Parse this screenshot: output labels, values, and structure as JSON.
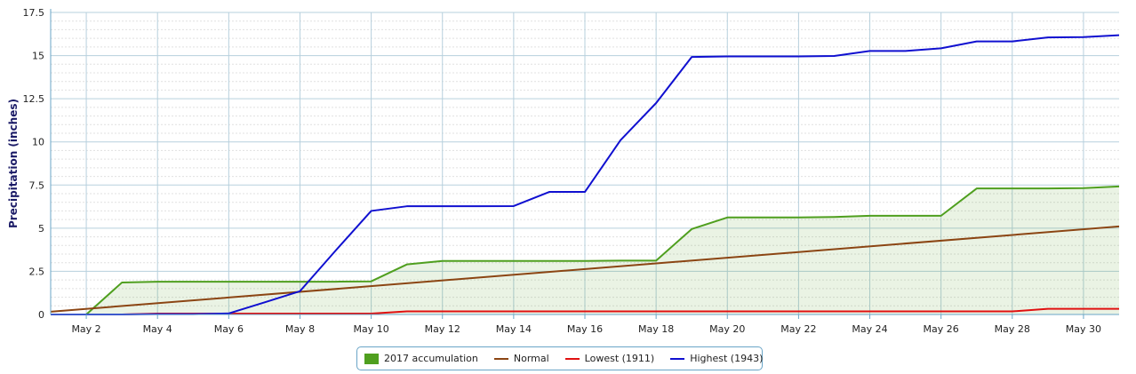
{
  "chart_data": {
    "type": "line",
    "title": "",
    "xlabel": "",
    "ylabel": "Precipitation (inches)",
    "ylim": [
      0,
      17.5
    ],
    "y_ticks": [
      "0",
      "2.5",
      "5",
      "7.5",
      "10",
      "12.5",
      "15",
      "17.5"
    ],
    "x_tick_labels": [
      "May 2",
      "May 4",
      "May 6",
      "May 8",
      "May 10",
      "May 12",
      "May 14",
      "May 16",
      "May 18",
      "May 20",
      "May 22",
      "May 24",
      "May 26",
      "May 28",
      "May 30"
    ],
    "x_tick_days": [
      2,
      4,
      6,
      8,
      10,
      12,
      14,
      16,
      18,
      20,
      22,
      24,
      26,
      28,
      30
    ],
    "xlim_days": [
      1,
      31
    ],
    "grid": true,
    "legend_placement": "bottom-center",
    "series": [
      {
        "name": "2017 accumulation",
        "color": "#4f9f1f",
        "style": "area",
        "x": [
          1,
          2,
          3,
          4,
          5,
          6,
          7,
          8,
          9,
          10,
          11,
          12,
          13,
          14,
          15,
          16,
          17,
          18,
          19,
          20,
          21,
          22,
          23,
          24,
          25,
          26,
          27,
          28,
          29,
          30,
          31
        ],
        "values": [
          0,
          0,
          1.85,
          1.9,
          1.9,
          1.9,
          1.9,
          1.9,
          1.9,
          1.92,
          2.9,
          3.1,
          3.1,
          3.1,
          3.1,
          3.1,
          3.12,
          3.12,
          4.95,
          5.62,
          5.62,
          5.62,
          5.65,
          5.72,
          5.72,
          5.72,
          7.3,
          7.3,
          7.3,
          7.32,
          7.42
        ]
      },
      {
        "name": "Normal",
        "color": "#8b4513",
        "style": "line",
        "x": [
          1,
          31
        ],
        "values": [
          0.16,
          5.1
        ]
      },
      {
        "name": "Lowest (1911)",
        "color": "#e01010",
        "style": "line",
        "x": [
          1,
          2,
          3,
          4,
          5,
          6,
          7,
          8,
          9,
          10,
          11,
          12,
          13,
          14,
          15,
          16,
          17,
          18,
          19,
          20,
          21,
          22,
          23,
          24,
          25,
          26,
          27,
          28,
          29,
          30,
          31
        ],
        "values": [
          0,
          0,
          0,
          0.05,
          0.05,
          0.05,
          0.05,
          0.05,
          0.05,
          0.05,
          0.18,
          0.18,
          0.18,
          0.18,
          0.18,
          0.18,
          0.18,
          0.18,
          0.18,
          0.18,
          0.18,
          0.18,
          0.18,
          0.18,
          0.18,
          0.18,
          0.18,
          0.18,
          0.33,
          0.33,
          0.33
        ]
      },
      {
        "name": "Highest (1943)",
        "color": "#1010d0",
        "style": "line",
        "x": [
          1,
          2,
          3,
          4,
          5,
          6,
          7,
          8,
          9,
          10,
          11,
          12,
          13,
          14,
          15,
          16,
          17,
          18,
          19,
          20,
          21,
          22,
          23,
          24,
          25,
          26,
          27,
          28,
          29,
          30,
          31
        ],
        "values": [
          0,
          0,
          0,
          0.02,
          0.02,
          0.06,
          0.7,
          1.35,
          3.7,
          6.0,
          6.27,
          6.27,
          6.27,
          6.28,
          7.1,
          7.1,
          10.1,
          12.25,
          14.92,
          14.95,
          14.95,
          14.95,
          14.98,
          15.27,
          15.27,
          15.42,
          15.82,
          15.82,
          16.05,
          16.07,
          16.18
        ]
      }
    ]
  }
}
